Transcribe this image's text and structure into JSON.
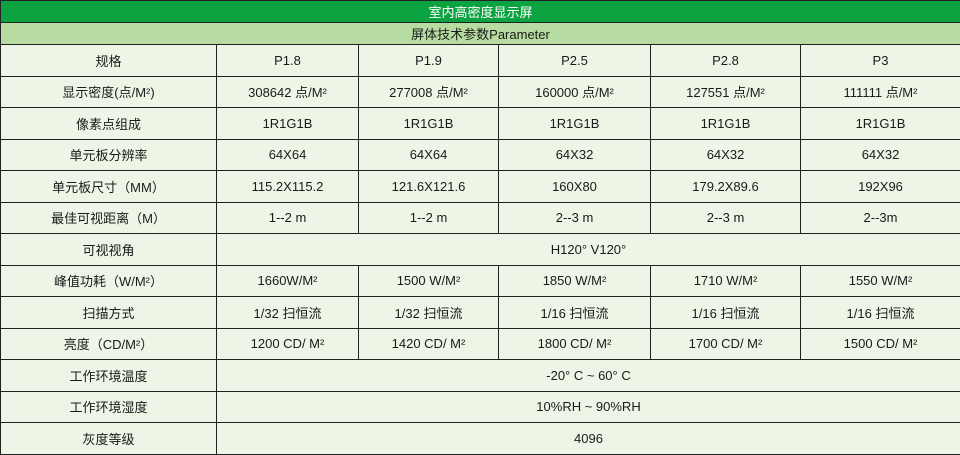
{
  "title": "室内高密度显示屏",
  "subtitle": "屏体技术参数Parameter",
  "colors": {
    "title_bg": "#0ba340",
    "subtitle_bg": "#b6dca1",
    "cell_bg": "#eef5e6"
  },
  "rows": [
    {
      "label": "规格",
      "values": [
        "P1.8",
        "P1.9",
        "P2.5",
        "P2.8",
        "P3"
      ]
    },
    {
      "label": "显示密度(点/M²)",
      "values": [
        "308642 点/M²",
        "277008 点/M²",
        "160000 点/M²",
        "127551 点/M²",
        "111111 点/M²"
      ]
    },
    {
      "label": "像素点组成",
      "values": [
        "1R1G1B",
        "1R1G1B",
        "1R1G1B",
        "1R1G1B",
        "1R1G1B"
      ]
    },
    {
      "label": "单元板分辨率",
      "values": [
        "64X64",
        "64X64",
        "64X32",
        "64X32",
        "64X32"
      ]
    },
    {
      "label": "单元板尺寸（MM）",
      "values": [
        "115.2X115.2",
        "121.6X121.6",
        "160X80",
        "179.2X89.6",
        "192X96"
      ]
    },
    {
      "label": "最佳可视距离（M）",
      "values": [
        "1--2 m",
        "1--2 m",
        "2--3 m",
        "2--3 m",
        "2--3m"
      ]
    },
    {
      "label": "可视视角",
      "value": "H120°  V120°"
    },
    {
      "label": "峰值功耗（W/M²）",
      "values": [
        "1660W/M²",
        "1500 W/M²",
        "1850 W/M²",
        "1710 W/M²",
        "1550 W/M²"
      ]
    },
    {
      "label": "扫描方式",
      "values": [
        "1/32 扫恒流",
        "1/32 扫恒流",
        "1/16 扫恒流",
        "1/16 扫恒流",
        "1/16 扫恒流"
      ]
    },
    {
      "label": "亮度（CD/M²）",
      "values": [
        "1200 CD/ M²",
        "1420 CD/ M²",
        "1800 CD/ M²",
        "1700 CD/ M²",
        "1500 CD/ M²"
      ]
    },
    {
      "label": "工作环境温度",
      "value": "-20° C ~ 60° C"
    },
    {
      "label": "工作环境湿度",
      "value": "10%RH ~ 90%RH"
    },
    {
      "label": "灰度等级",
      "value": "4096"
    }
  ]
}
